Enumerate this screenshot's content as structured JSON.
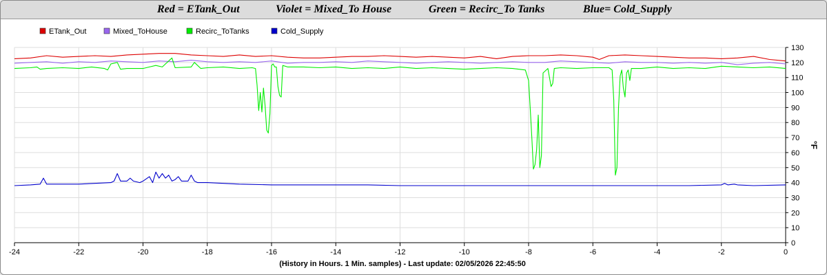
{
  "header": {
    "titles": [
      "Red = ETank_Out",
      "Violet = Mixed_To House",
      "Green = Recirc_To Tanks",
      "Blue= Cold_Supply"
    ]
  },
  "colors": {
    "red": "#dd0000",
    "violet": "#9966ee",
    "green": "#00ee00",
    "blue": "#0000cc",
    "grid": "#dddddd"
  },
  "chart_data": {
    "type": "line",
    "xlabel": "(History in Hours. 1 Min. samples) - Last update: 02/05/2026 22:45:50",
    "ylabel": "°F",
    "xlim": [
      -24,
      0
    ],
    "ylim": [
      0,
      130
    ],
    "x_ticks": [
      -24,
      -22,
      -20,
      -18,
      -16,
      -14,
      -12,
      -10,
      -8,
      -6,
      -4,
      -2,
      0
    ],
    "y_ticks": [
      0,
      10,
      20,
      30,
      40,
      50,
      60,
      70,
      80,
      90,
      100,
      110,
      120,
      130
    ],
    "grid": true,
    "legend_position": "top-left",
    "series": [
      {
        "name": "ETank_Out",
        "color": "#dd0000",
        "points": [
          [
            -24,
            122.5
          ],
          [
            -23.5,
            123
          ],
          [
            -23,
            124.5
          ],
          [
            -22.5,
            123.5
          ],
          [
            -22,
            124
          ],
          [
            -21.5,
            124.5
          ],
          [
            -21,
            124
          ],
          [
            -20.5,
            125
          ],
          [
            -20,
            125.5
          ],
          [
            -19.5,
            126
          ],
          [
            -19,
            126
          ],
          [
            -18.5,
            125
          ],
          [
            -18,
            124.5
          ],
          [
            -17.5,
            124
          ],
          [
            -17,
            125
          ],
          [
            -16.5,
            124
          ],
          [
            -16,
            124.5
          ],
          [
            -15.5,
            123.5
          ],
          [
            -15,
            123
          ],
          [
            -14.5,
            123
          ],
          [
            -14,
            123.5
          ],
          [
            -13.5,
            124
          ],
          [
            -13,
            124
          ],
          [
            -12.5,
            124.5
          ],
          [
            -12,
            124
          ],
          [
            -11.5,
            123.5
          ],
          [
            -11,
            124
          ],
          [
            -10.5,
            123.5
          ],
          [
            -10,
            123
          ],
          [
            -9.5,
            124
          ],
          [
            -9,
            122.5
          ],
          [
            -8.5,
            124
          ],
          [
            -8,
            124.5
          ],
          [
            -7.5,
            124.5
          ],
          [
            -7,
            125
          ],
          [
            -6.5,
            124.5
          ],
          [
            -6,
            123.5
          ],
          [
            -5.8,
            122
          ],
          [
            -5.5,
            124.5
          ],
          [
            -5,
            125
          ],
          [
            -4.5,
            124.5
          ],
          [
            -4,
            124
          ],
          [
            -3.5,
            123.5
          ],
          [
            -3,
            123
          ],
          [
            -2.5,
            123
          ],
          [
            -2,
            122.5
          ],
          [
            -1.5,
            123
          ],
          [
            -1,
            124
          ],
          [
            -0.5,
            122
          ],
          [
            0,
            121
          ]
        ]
      },
      {
        "name": "Mixed_ToHouse",
        "color": "#9966ee",
        "points": [
          [
            -24,
            119.5
          ],
          [
            -23.5,
            120
          ],
          [
            -23,
            120.5
          ],
          [
            -22.5,
            119.5
          ],
          [
            -22,
            120.5
          ],
          [
            -21.5,
            120
          ],
          [
            -21,
            121
          ],
          [
            -20.5,
            120.5
          ],
          [
            -20,
            120
          ],
          [
            -19.5,
            121
          ],
          [
            -19,
            120.5
          ],
          [
            -18.5,
            121.5
          ],
          [
            -18,
            120.5
          ],
          [
            -17.5,
            120
          ],
          [
            -17,
            120.5
          ],
          [
            -16.5,
            120
          ],
          [
            -16,
            121
          ],
          [
            -15.5,
            119.5
          ],
          [
            -15,
            120
          ],
          [
            -14.5,
            120
          ],
          [
            -14,
            120.5
          ],
          [
            -13.5,
            120
          ],
          [
            -13,
            121
          ],
          [
            -12.5,
            120.5
          ],
          [
            -12,
            120
          ],
          [
            -11.5,
            119.5
          ],
          [
            -11,
            120
          ],
          [
            -10.5,
            120.5
          ],
          [
            -10,
            120
          ],
          [
            -9.5,
            119.5
          ],
          [
            -9,
            120
          ],
          [
            -8.5,
            120.5
          ],
          [
            -8,
            120
          ],
          [
            -7.5,
            120
          ],
          [
            -7,
            121
          ],
          [
            -6.5,
            120.5
          ],
          [
            -6,
            120
          ],
          [
            -5.5,
            119.5
          ],
          [
            -5,
            120.5
          ],
          [
            -4.5,
            120
          ],
          [
            -4,
            120
          ],
          [
            -3.5,
            119.5
          ],
          [
            -3,
            120
          ],
          [
            -2.5,
            119.5
          ],
          [
            -2,
            120
          ],
          [
            -1.5,
            118.5
          ],
          [
            -1,
            119.5
          ],
          [
            -0.5,
            120
          ],
          [
            0,
            119
          ]
        ]
      },
      {
        "name": "Recirc_ToTanks",
        "color": "#00ee00",
        "points": [
          [
            -24,
            116
          ],
          [
            -23.5,
            116.5
          ],
          [
            -23.3,
            117
          ],
          [
            -23.2,
            115.5
          ],
          [
            -23,
            116
          ],
          [
            -22.5,
            116.5
          ],
          [
            -22,
            116
          ],
          [
            -21.6,
            117
          ],
          [
            -21.2,
            116
          ],
          [
            -21.1,
            115
          ],
          [
            -21,
            119
          ],
          [
            -20.8,
            120
          ],
          [
            -20.7,
            115.5
          ],
          [
            -20.5,
            116
          ],
          [
            -20,
            116
          ],
          [
            -19.8,
            117
          ],
          [
            -19.6,
            118
          ],
          [
            -19.4,
            117
          ],
          [
            -19.3,
            119
          ],
          [
            -19.1,
            123
          ],
          [
            -19,
            116.5
          ],
          [
            -18.5,
            117
          ],
          [
            -18.4,
            120
          ],
          [
            -18.2,
            116
          ],
          [
            -18,
            116.5
          ],
          [
            -17.5,
            117
          ],
          [
            -17,
            116
          ],
          [
            -16.6,
            116.5
          ],
          [
            -16.5,
            116
          ],
          [
            -16.45,
            105
          ],
          [
            -16.4,
            88
          ],
          [
            -16.35,
            100
          ],
          [
            -16.3,
            87
          ],
          [
            -16.25,
            103
          ],
          [
            -16.2,
            91
          ],
          [
            -16.15,
            75
          ],
          [
            -16.1,
            73
          ],
          [
            -16.05,
            86
          ],
          [
            -16,
            118
          ],
          [
            -15.95,
            119
          ],
          [
            -15.9,
            117
          ],
          [
            -15.85,
            117
          ],
          [
            -15.8,
            104
          ],
          [
            -15.75,
            98
          ],
          [
            -15.7,
            97
          ],
          [
            -15.65,
            118
          ],
          [
            -15.5,
            117
          ],
          [
            -15,
            117
          ],
          [
            -14.5,
            116.5
          ],
          [
            -14,
            117
          ],
          [
            -13.5,
            116
          ],
          [
            -13,
            116.5
          ],
          [
            -12.5,
            116
          ],
          [
            -12,
            117
          ],
          [
            -11.5,
            116
          ],
          [
            -11,
            116.5
          ],
          [
            -10.5,
            116
          ],
          [
            -10,
            115.5
          ],
          [
            -9.5,
            116
          ],
          [
            -9,
            116.5
          ],
          [
            -8.5,
            116
          ],
          [
            -8.1,
            115
          ],
          [
            -8,
            108
          ],
          [
            -7.95,
            90
          ],
          [
            -7.9,
            70
          ],
          [
            -7.85,
            49
          ],
          [
            -7.8,
            52
          ],
          [
            -7.75,
            62
          ],
          [
            -7.7,
            85
          ],
          [
            -7.65,
            50
          ],
          [
            -7.6,
            58
          ],
          [
            -7.55,
            113
          ],
          [
            -7.5,
            114
          ],
          [
            -7.4,
            116
          ],
          [
            -7.3,
            104
          ],
          [
            -7.25,
            106
          ],
          [
            -7.2,
            116
          ],
          [
            -7,
            116.5
          ],
          [
            -6.5,
            116
          ],
          [
            -6,
            116.5
          ],
          [
            -5.5,
            116.5
          ],
          [
            -5.4,
            115
          ],
          [
            -5.35,
            95
          ],
          [
            -5.3,
            45
          ],
          [
            -5.25,
            50
          ],
          [
            -5.2,
            90
          ],
          [
            -5.15,
            111
          ],
          [
            -5.1,
            115
          ],
          [
            -5.05,
            103
          ],
          [
            -5,
            97
          ],
          [
            -4.95,
            113
          ],
          [
            -4.9,
            115
          ],
          [
            -4.85,
            108
          ],
          [
            -4.8,
            116
          ],
          [
            -4.5,
            116
          ],
          [
            -4,
            117
          ],
          [
            -3.5,
            116
          ],
          [
            -3,
            116.5
          ],
          [
            -2.5,
            116
          ],
          [
            -2,
            117.5
          ],
          [
            -1.5,
            117
          ],
          [
            -1,
            116.5
          ],
          [
            -0.5,
            117
          ],
          [
            0,
            116
          ]
        ]
      },
      {
        "name": "Cold_Supply",
        "color": "#0000cc",
        "points": [
          [
            -24,
            38
          ],
          [
            -23.5,
            38.5
          ],
          [
            -23.2,
            39
          ],
          [
            -23.1,
            43
          ],
          [
            -23,
            39
          ],
          [
            -22.5,
            39
          ],
          [
            -22,
            39
          ],
          [
            -21.5,
            39.5
          ],
          [
            -21,
            40
          ],
          [
            -20.9,
            41
          ],
          [
            -20.8,
            46
          ],
          [
            -20.7,
            41
          ],
          [
            -20.5,
            41
          ],
          [
            -20.4,
            43
          ],
          [
            -20.3,
            41
          ],
          [
            -20.1,
            40
          ],
          [
            -20,
            41
          ],
          [
            -19.8,
            44
          ],
          [
            -19.7,
            40
          ],
          [
            -19.6,
            47
          ],
          [
            -19.5,
            43
          ],
          [
            -19.4,
            46
          ],
          [
            -19.3,
            43
          ],
          [
            -19.2,
            45
          ],
          [
            -19.1,
            41
          ],
          [
            -19,
            42
          ],
          [
            -18.9,
            44
          ],
          [
            -18.8,
            41
          ],
          [
            -18.6,
            41
          ],
          [
            -18.5,
            45
          ],
          [
            -18.4,
            41
          ],
          [
            -18.3,
            40
          ],
          [
            -18.2,
            40
          ],
          [
            -18,
            40
          ],
          [
            -17,
            39
          ],
          [
            -16,
            38.5
          ],
          [
            -15,
            38.5
          ],
          [
            -14,
            38.5
          ],
          [
            -13,
            38.5
          ],
          [
            -12,
            38
          ],
          [
            -11,
            38
          ],
          [
            -10,
            38
          ],
          [
            -9,
            38
          ],
          [
            -8,
            38
          ],
          [
            -7,
            38
          ],
          [
            -6,
            38
          ],
          [
            -5,
            38
          ],
          [
            -4,
            38
          ],
          [
            -3,
            38
          ],
          [
            -2,
            38.5
          ],
          [
            -1.9,
            39.5
          ],
          [
            -1.8,
            38.5
          ],
          [
            -1.6,
            39
          ],
          [
            -1.5,
            38.5
          ],
          [
            -1,
            38
          ],
          [
            0,
            38.5
          ]
        ]
      }
    ]
  }
}
